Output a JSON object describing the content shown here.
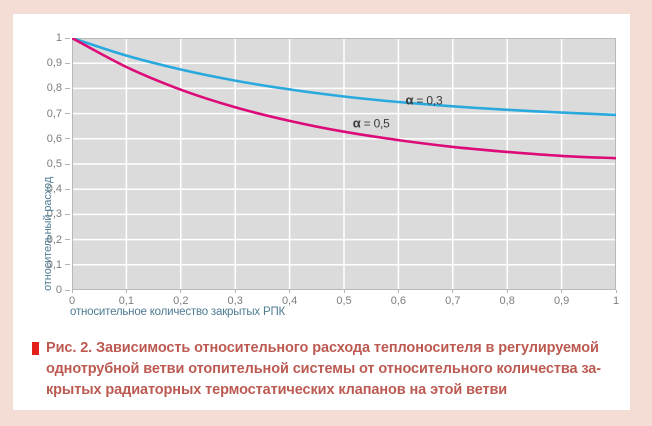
{
  "figure": {
    "frame_color": "#f3ddd5",
    "panel_color": "#ffffff"
  },
  "chart_data": {
    "type": "line",
    "title": "",
    "xlabel": "относительное количество закрытых РПК",
    "ylabel": "относительный расход",
    "xlim": [
      0,
      1
    ],
    "ylim": [
      0,
      1
    ],
    "grid": true,
    "legend_position": "inline-annotations",
    "plot_bg": "#dbdbdb",
    "grid_color": "#ffffff",
    "border_color": "#b9b9b9",
    "tick_label_color": "#7d7d7d",
    "axis_title_color": "#4e7b93",
    "x": [
      0,
      0.1,
      0.2,
      0.3,
      0.4,
      0.5,
      0.6,
      0.7,
      0.8,
      0.9,
      1
    ],
    "x_ticks": [
      {
        "v": 0,
        "label": "0"
      },
      {
        "v": 0.1,
        "label": "0,1"
      },
      {
        "v": 0.2,
        "label": "0,2"
      },
      {
        "v": 0.3,
        "label": "0,3"
      },
      {
        "v": 0.4,
        "label": "0,4"
      },
      {
        "v": 0.5,
        "label": "0,5"
      },
      {
        "v": 0.6,
        "label": "0,6"
      },
      {
        "v": 0.7,
        "label": "0,7"
      },
      {
        "v": 0.8,
        "label": "0,8"
      },
      {
        "v": 0.9,
        "label": "0,9"
      },
      {
        "v": 1,
        "label": "1"
      }
    ],
    "y_ticks": [
      {
        "v": 1,
        "label": "1"
      },
      {
        "v": 0.9,
        "label": "0,9"
      },
      {
        "v": 0.8,
        "label": "0,8"
      },
      {
        "v": 0.7,
        "label": "0,7"
      },
      {
        "v": 0.6,
        "label": "0,6"
      },
      {
        "v": 0.5,
        "label": "0,5"
      },
      {
        "v": 0.4,
        "label": "0,4"
      },
      {
        "v": 0.3,
        "label": "0,3"
      },
      {
        "v": 0.2,
        "label": "0,2"
      },
      {
        "v": 0.1,
        "label": "0,1"
      },
      {
        "v": 0,
        "label": "0"
      }
    ],
    "series": [
      {
        "name": "α = 0,3",
        "color": "#29a9dd",
        "values": [
          1,
          0.93,
          0.875,
          0.831,
          0.796,
          0.768,
          0.746,
          0.729,
          0.715,
          0.704,
          0.695
        ]
      },
      {
        "name": "α = 0,5",
        "color": "#dc0b78",
        "values": [
          1,
          0.885,
          0.795,
          0.725,
          0.671,
          0.628,
          0.595,
          0.568,
          0.548,
          0.532,
          0.523
        ]
      }
    ],
    "annotations": [
      {
        "text": "α = 0,3",
        "x": 0.647,
        "y": 0.754
      },
      {
        "text": "α = 0,5",
        "x": 0.55,
        "y": 0.663
      }
    ]
  },
  "caption": {
    "bullet_color": "#e3201b",
    "text_color": "#bc5a52",
    "text": "Рис. 2. Зависимость относительного расхода теплоносителя в регулируемой\nоднотрубной ветви отопительной системы от относительного количества за-\nкрытых радиаторных термостатических клапанов на этой ветви"
  }
}
